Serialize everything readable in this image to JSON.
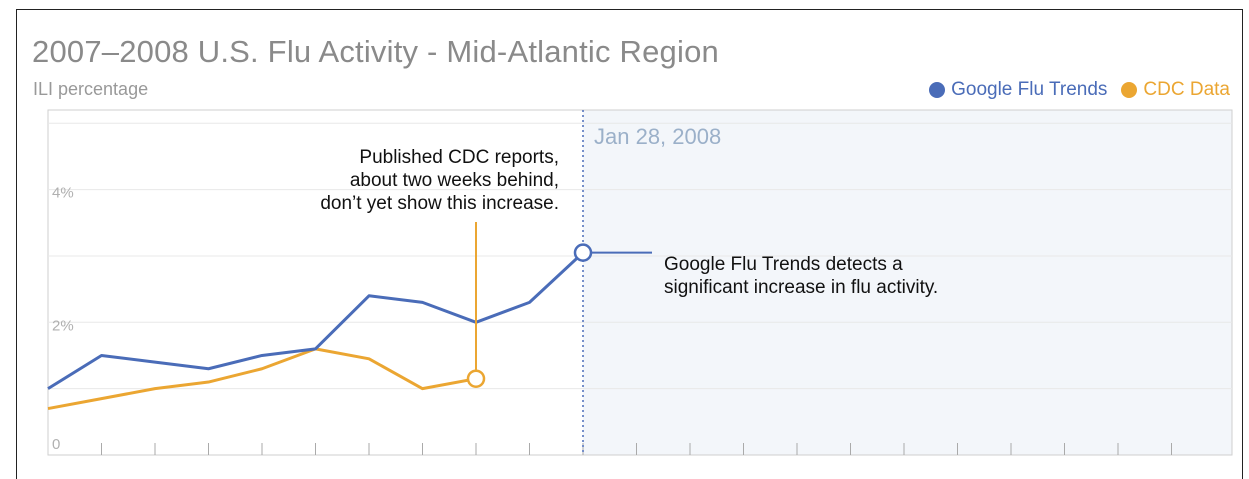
{
  "chart_data": {
    "type": "line",
    "title": "2007–2008 U.S. Flu Activity - Mid-Atlantic Region",
    "subtitle": "ILI percentage",
    "ylabel": "ILI percentage",
    "ylim": [
      0,
      5.2
    ],
    "yticks": [
      {
        "value": 0,
        "label": "0"
      },
      {
        "value": 2,
        "label": "2%"
      },
      {
        "value": 4,
        "label": "4%"
      }
    ],
    "x_count": 22,
    "grid": true,
    "legend_position": "top-right",
    "series": [
      {
        "name": "Google Flu Trends",
        "color": "#4a6cb8",
        "x": [
          0,
          1,
          2,
          3,
          4,
          5,
          6,
          7,
          8,
          9,
          10
        ],
        "values": [
          1.0,
          1.5,
          1.4,
          1.3,
          1.5,
          1.6,
          2.4,
          2.3,
          2.0,
          2.3,
          3.05
        ]
      },
      {
        "name": "CDC Data",
        "color": "#eba632",
        "x": [
          0,
          1,
          2,
          3,
          4,
          5,
          6,
          7,
          8
        ],
        "values": [
          0.7,
          0.85,
          1.0,
          1.1,
          1.3,
          1.6,
          1.45,
          1.0,
          1.15
        ]
      }
    ],
    "highlight": {
      "x_index": 10,
      "label": "Jan 28, 2008"
    },
    "annotations": {
      "cdc_note": [
        "Published CDC reports,",
        "about two weeks behind,",
        "don’t yet show this increase."
      ],
      "gft_note": [
        "Google Flu Trends detects a",
        "significant increase in flu activity."
      ]
    }
  }
}
